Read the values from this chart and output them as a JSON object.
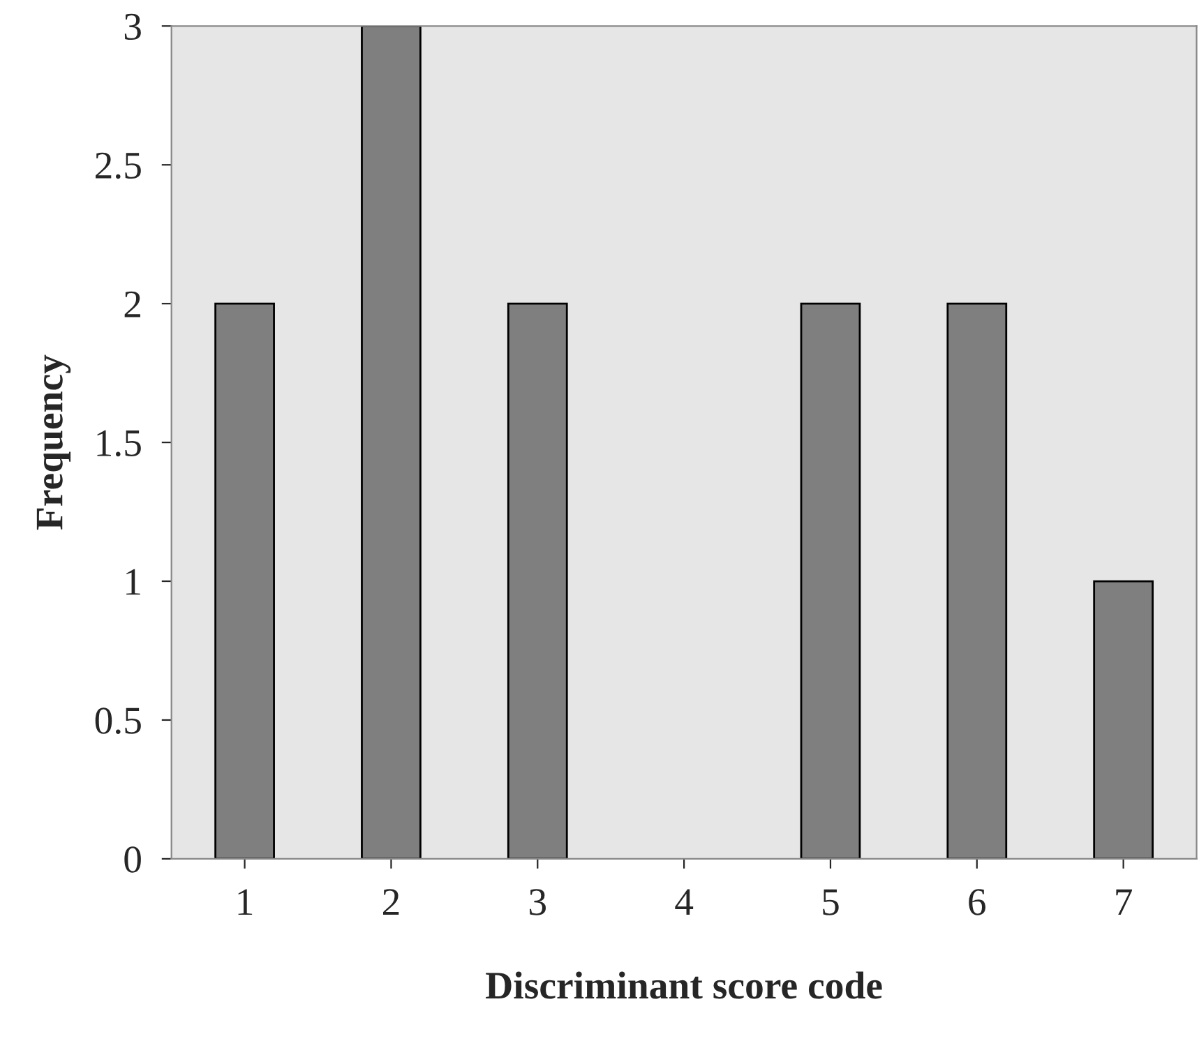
{
  "chart_data": {
    "type": "bar",
    "xlabel": "Discriminant score code",
    "ylabel": "Frequency",
    "categories": [
      "1",
      "2",
      "3",
      "4",
      "5",
      "6",
      "7"
    ],
    "values": [
      2,
      3,
      2,
      0,
      2,
      2,
      1
    ],
    "color": "#7f7f7f",
    "ylim": [
      0,
      3
    ],
    "yticks": [
      0,
      0.5,
      1,
      1.5,
      2,
      2.5,
      3
    ],
    "grid": false
  }
}
